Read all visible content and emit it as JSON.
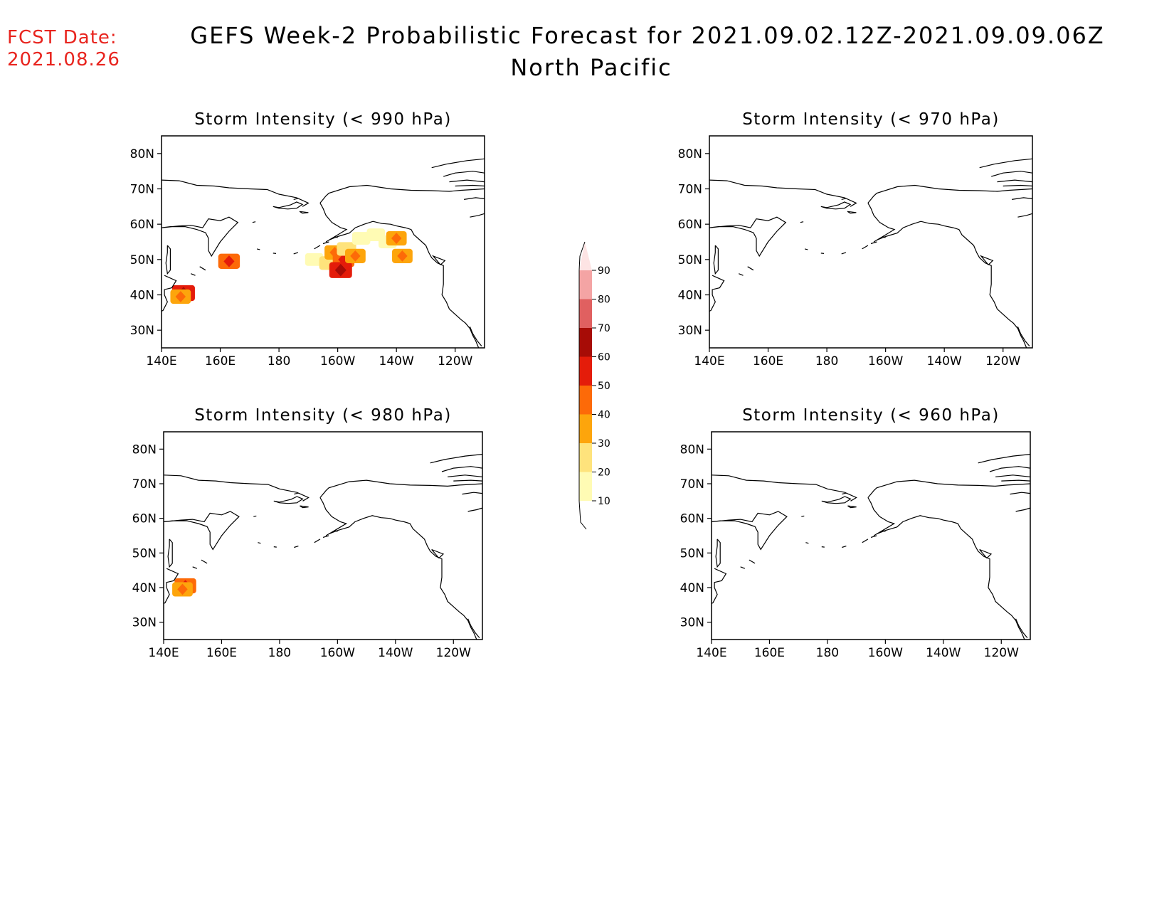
{
  "header": {
    "fcst_label": "FCST Date:",
    "fcst_date": "2021.08.26",
    "title": "GEFS Week-2 Probabilistic Forecast for 2021.09.02.12Z-2021.09.09.06Z",
    "region": "North Pacific"
  },
  "colors": {
    "annotation_red": "#e8241e",
    "scale": [
      "#fffbb4",
      "#fee37c",
      "#fda50c",
      "#fd6a08",
      "#e41c0a",
      "#a70c06",
      "#e06060",
      "#f4a4a4",
      "#fde4e4"
    ]
  },
  "colorbar": {
    "labels": [
      "10",
      "20",
      "30",
      "40",
      "50",
      "60",
      "70",
      "80",
      "90"
    ]
  },
  "axes": {
    "x_ticks": [
      "140E",
      "160E",
      "180",
      "160W",
      "140W",
      "120W"
    ],
    "y_ticks": [
      "30N",
      "40N",
      "50N",
      "60N",
      "70N",
      "80N"
    ]
  },
  "panels": [
    {
      "id": "p990",
      "title": "Storm Intensity (< 990 hPa)",
      "blobs": [
        {
          "lon": 147.5,
          "lat": 40.5,
          "lvl": 5
        },
        {
          "lon": 146.5,
          "lat": 39.5,
          "lvl": 3
        },
        {
          "lon": 163,
          "lat": 49.5,
          "lvl": 4
        },
        {
          "lon": 192,
          "lat": 50,
          "lvl": 1
        },
        {
          "lon": 197,
          "lat": 49,
          "lvl": 2
        },
        {
          "lon": 199,
          "lat": 52,
          "lvl": 3
        },
        {
          "lon": 202,
          "lat": 50,
          "lvl": 4
        },
        {
          "lon": 201,
          "lat": 47,
          "lvl": 5
        },
        {
          "lon": 203,
          "lat": 53,
          "lvl": 2
        },
        {
          "lon": 206,
          "lat": 51,
          "lvl": 3
        },
        {
          "lon": 208,
          "lat": 56,
          "lvl": 1
        },
        {
          "lon": 213,
          "lat": 57,
          "lvl": 1
        },
        {
          "lon": 217,
          "lat": 55,
          "lvl": 1
        },
        {
          "lon": 220,
          "lat": 56,
          "lvl": 3
        },
        {
          "lon": 222,
          "lat": 51,
          "lvl": 3
        }
      ]
    },
    {
      "id": "p970",
      "title": "Storm Intensity (< 970 hPa)",
      "blobs": []
    },
    {
      "id": "p980",
      "title": "Storm Intensity (< 980 hPa)",
      "blobs": [
        {
          "lon": 147.5,
          "lat": 40.5,
          "lvl": 4
        },
        {
          "lon": 146.5,
          "lat": 39.5,
          "lvl": 3
        }
      ]
    },
    {
      "id": "p960",
      "title": "Storm Intensity (< 960 hPa)",
      "blobs": []
    }
  ]
}
